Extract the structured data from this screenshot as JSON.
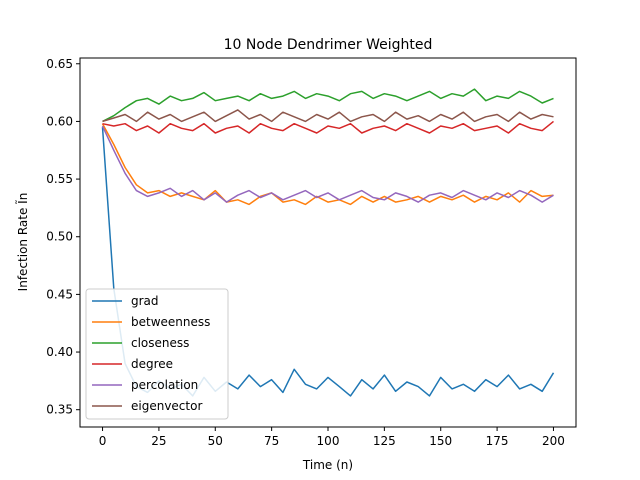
{
  "chart_data": {
    "type": "line",
    "title": "10 Node Dendrimer Weighted",
    "xlabel": "Time (n)",
    "ylabel": "Infection Rate Ĩn",
    "xlim": [
      -10,
      210
    ],
    "ylim": [
      0.335,
      0.655
    ],
    "xticks": [
      0,
      25,
      50,
      75,
      100,
      125,
      150,
      175,
      200
    ],
    "yticks": [
      0.35,
      0.4,
      0.45,
      0.5,
      0.55,
      0.6,
      0.65
    ],
    "ytick_labels": [
      "0.35",
      "0.40",
      "0.45",
      "0.50",
      "0.55",
      "0.60",
      "0.65"
    ],
    "grid": false,
    "legend_position": "lower-left",
    "x": [
      0,
      5,
      10,
      15,
      20,
      25,
      30,
      35,
      40,
      45,
      50,
      55,
      60,
      65,
      70,
      75,
      80,
      85,
      90,
      95,
      100,
      105,
      110,
      115,
      120,
      125,
      130,
      135,
      140,
      145,
      150,
      155,
      160,
      165,
      170,
      175,
      180,
      185,
      190,
      195,
      200
    ],
    "series": [
      {
        "name": "grad",
        "color": "#1f77b4",
        "values": [
          0.595,
          0.455,
          0.39,
          0.37,
          0.365,
          0.375,
          0.368,
          0.372,
          0.362,
          0.378,
          0.366,
          0.374,
          0.368,
          0.38,
          0.37,
          0.376,
          0.365,
          0.385,
          0.372,
          0.368,
          0.378,
          0.37,
          0.362,
          0.376,
          0.368,
          0.38,
          0.366,
          0.374,
          0.37,
          0.362,
          0.378,
          0.368,
          0.372,
          0.366,
          0.376,
          0.37,
          0.38,
          0.368,
          0.372,
          0.366,
          0.382
        ]
      },
      {
        "name": "betweenness",
        "color": "#ff7f0e",
        "values": [
          0.598,
          0.58,
          0.56,
          0.545,
          0.538,
          0.54,
          0.535,
          0.538,
          0.535,
          0.532,
          0.54,
          0.53,
          0.532,
          0.528,
          0.535,
          0.538,
          0.53,
          0.532,
          0.528,
          0.535,
          0.53,
          0.532,
          0.528,
          0.535,
          0.53,
          0.535,
          0.53,
          0.532,
          0.535,
          0.53,
          0.535,
          0.532,
          0.536,
          0.53,
          0.535,
          0.532,
          0.538,
          0.53,
          0.54,
          0.535,
          0.536
        ]
      },
      {
        "name": "closeness",
        "color": "#2ca02c",
        "values": [
          0.6,
          0.605,
          0.612,
          0.618,
          0.62,
          0.615,
          0.622,
          0.618,
          0.62,
          0.625,
          0.618,
          0.62,
          0.622,
          0.618,
          0.624,
          0.62,
          0.622,
          0.626,
          0.62,
          0.624,
          0.622,
          0.618,
          0.624,
          0.626,
          0.62,
          0.624,
          0.622,
          0.618,
          0.622,
          0.626,
          0.62,
          0.624,
          0.622,
          0.628,
          0.618,
          0.622,
          0.62,
          0.626,
          0.622,
          0.616,
          0.62
        ]
      },
      {
        "name": "degree",
        "color": "#d62728",
        "values": [
          0.598,
          0.596,
          0.598,
          0.592,
          0.596,
          0.59,
          0.598,
          0.594,
          0.592,
          0.598,
          0.59,
          0.594,
          0.596,
          0.59,
          0.598,
          0.594,
          0.592,
          0.598,
          0.594,
          0.59,
          0.596,
          0.594,
          0.598,
          0.59,
          0.594,
          0.596,
          0.592,
          0.598,
          0.594,
          0.59,
          0.596,
          0.594,
          0.598,
          0.592,
          0.594,
          0.596,
          0.59,
          0.598,
          0.594,
          0.592,
          0.6
        ]
      },
      {
        "name": "percolation",
        "color": "#9467bd",
        "values": [
          0.596,
          0.575,
          0.555,
          0.54,
          0.535,
          0.538,
          0.542,
          0.535,
          0.54,
          0.532,
          0.538,
          0.53,
          0.536,
          0.54,
          0.534,
          0.538,
          0.532,
          0.536,
          0.54,
          0.534,
          0.538,
          0.532,
          0.536,
          0.54,
          0.534,
          0.532,
          0.538,
          0.535,
          0.53,
          0.536,
          0.538,
          0.534,
          0.54,
          0.536,
          0.532,
          0.538,
          0.534,
          0.54,
          0.536,
          0.53,
          0.536
        ]
      },
      {
        "name": "eigenvector",
        "color": "#8c564b",
        "values": [
          0.6,
          0.603,
          0.606,
          0.6,
          0.608,
          0.602,
          0.606,
          0.6,
          0.604,
          0.608,
          0.6,
          0.605,
          0.61,
          0.602,
          0.606,
          0.6,
          0.608,
          0.604,
          0.6,
          0.606,
          0.602,
          0.608,
          0.6,
          0.604,
          0.606,
          0.6,
          0.608,
          0.602,
          0.605,
          0.6,
          0.606,
          0.602,
          0.608,
          0.6,
          0.604,
          0.606,
          0.6,
          0.608,
          0.602,
          0.606,
          0.604
        ]
      }
    ]
  }
}
